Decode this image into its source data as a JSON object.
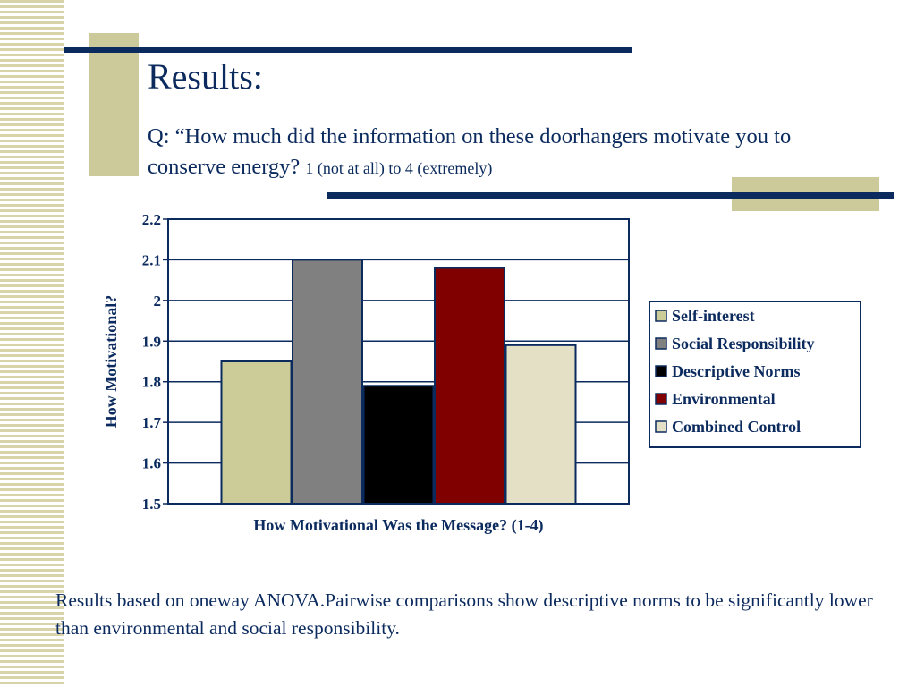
{
  "slide": {
    "title": "Results:",
    "question_main": "Q: “How much did the information on these doorhangers motivate you to conserve energy?",
    "question_scale": "1 (not at all) to 4 (extremely)",
    "footnote": "Results based on oneway ANOVA.Pairwise comparisons show descriptive norms to be significantly lower than environmental and social responsibility."
  },
  "colors": {
    "accent_navy": "#0b2a5e",
    "tan": "#ccc99a"
  },
  "chart_data": {
    "type": "bar",
    "title": "",
    "xlabel": "How Motivational Was the Message? (1-4)",
    "ylabel": "How Motivational?",
    "ylim": [
      1.5,
      2.2
    ],
    "yticks": [
      "1.5",
      "1.6",
      "1.7",
      "1.8",
      "1.9",
      "2",
      "2.1",
      "2.2"
    ],
    "grid": true,
    "legend_position": "right",
    "series": [
      {
        "name": "Self-interest",
        "value": 1.85,
        "color": "#cccc99"
      },
      {
        "name": "Social Responsibility",
        "value": 2.1,
        "color": "#808080"
      },
      {
        "name": "Descriptive Norms",
        "value": 1.79,
        "color": "#000000"
      },
      {
        "name": "Environmental",
        "value": 2.08,
        "color": "#800000"
      },
      {
        "name": "Combined Control",
        "value": 1.89,
        "color": "#e3e0c6"
      }
    ]
  }
}
